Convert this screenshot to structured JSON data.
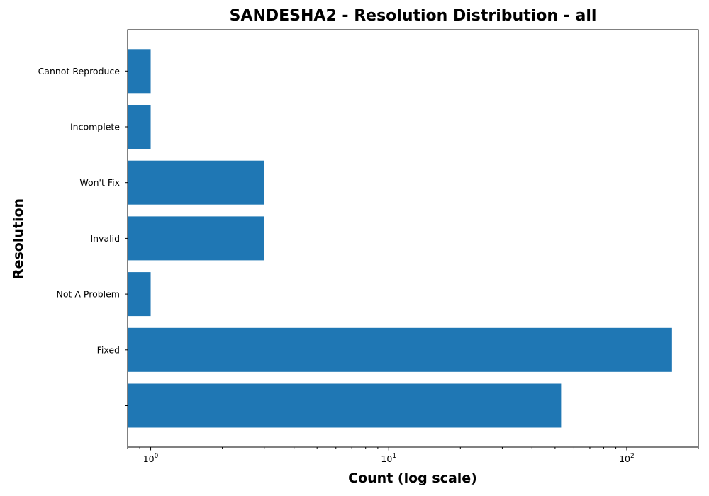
{
  "chart_data": {
    "type": "bar",
    "orientation": "horizontal",
    "title": "SANDESHA2 - Resolution Distribution - all",
    "xlabel": "Count (log scale)",
    "ylabel": "Resolution",
    "x_scale": "log",
    "xlim": [
      0.8,
      200
    ],
    "x_ticks": [
      {
        "base": "10",
        "exp": "0",
        "value": 1
      },
      {
        "base": "10",
        "exp": "1",
        "value": 10
      },
      {
        "base": "10",
        "exp": "2",
        "value": 100
      }
    ],
    "categories": [
      "",
      "Fixed",
      "Not A Problem",
      "Invalid",
      "Won't Fix",
      "Incomplete",
      "Cannot Reproduce"
    ],
    "values": [
      53,
      155,
      1,
      3,
      3,
      1,
      1
    ],
    "bar_color": "#1f77b4",
    "grid": false
  }
}
